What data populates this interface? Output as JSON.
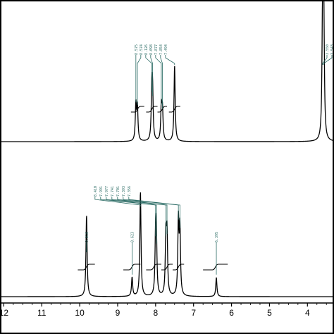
{
  "chart_data": [
    {
      "panel": "top",
      "type": "line",
      "kind": "1H NMR spectrum",
      "peaks": [
        {
          "x": 8.52,
          "h": 0.28,
          "label": "8.575"
        },
        {
          "x": 8.48,
          "h": 0.26,
          "label": "8.574"
        },
        {
          "x": 8.1,
          "h": 0.36,
          "label": "8.126"
        },
        {
          "x": 8.08,
          "h": 0.33,
          "label": "8.098"
        },
        {
          "x": 7.85,
          "h": 0.26,
          "label": "7.877"
        },
        {
          "x": 7.82,
          "h": 0.23,
          "label": "7.854"
        },
        {
          "x": 7.5,
          "h": 0.58,
          "label": "7.494"
        },
        {
          "x": 3.6,
          "h": 1.0,
          "label": "3.550"
        },
        {
          "x": 3.57,
          "h": 0.95,
          "label": "3.543"
        }
      ],
      "integrals": [
        {
          "from": 8.65,
          "to": 8.3
        },
        {
          "from": 8.25,
          "to": 7.95
        },
        {
          "from": 7.95,
          "to": 7.7
        },
        {
          "from": 7.65,
          "to": 7.35
        }
      ]
    },
    {
      "panel": "bottom",
      "type": "line",
      "kind": "1H NMR spectrum",
      "peaks": [
        {
          "x": 9.82,
          "h": 0.68,
          "label": "9.818"
        },
        {
          "x": 8.62,
          "h": 0.16,
          "label": "8.623"
        },
        {
          "x": 8.4,
          "h": 0.88,
          "label": "8.410"
        },
        {
          "x": 8.0,
          "h": 0.48,
          "label": "7.991"
        },
        {
          "x": 7.98,
          "h": 0.42,
          "label": "7.977"
        },
        {
          "x": 7.73,
          "h": 0.48,
          "label": "7.741"
        },
        {
          "x": 7.7,
          "h": 0.5,
          "label": "7.701"
        },
        {
          "x": 7.4,
          "h": 0.62,
          "label": "7.393"
        },
        {
          "x": 7.36,
          "h": 0.55,
          "label": "7.356"
        },
        {
          "x": 6.4,
          "h": 0.16,
          "label": "6.395"
        }
      ],
      "integrals": [
        {
          "from": 10.05,
          "to": 9.6
        },
        {
          "from": 8.85,
          "to": 8.4
        },
        {
          "from": 8.25,
          "to": 7.85
        },
        {
          "from": 7.85,
          "to": 7.55
        },
        {
          "from": 7.55,
          "to": 7.25
        },
        {
          "from": 6.75,
          "to": 6.1
        }
      ]
    }
  ],
  "x_axis": {
    "ticks": [
      "12",
      "11",
      "10",
      "9",
      "8",
      "7",
      "6",
      "5",
      "4"
    ],
    "tick_values": [
      12,
      11,
      10,
      9,
      8,
      7,
      6,
      5,
      4
    ],
    "range": [
      12.1,
      3.3
    ],
    "reversed": true
  },
  "colors": {
    "spectrum": "#000000",
    "peak_label": "#2a6b64",
    "border": "#000000"
  }
}
